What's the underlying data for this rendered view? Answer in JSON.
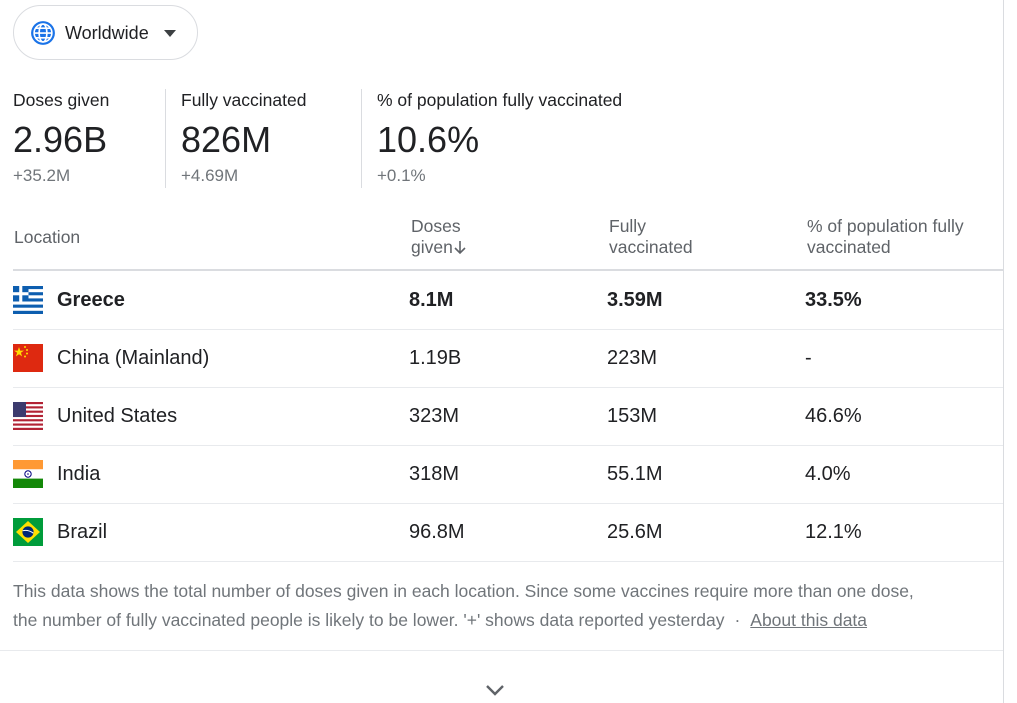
{
  "region": {
    "selected": "Worldwide",
    "icon": "globe-icon",
    "accent": "#1a73e8"
  },
  "stats": [
    {
      "label": "Doses given",
      "value": "2.96B",
      "delta": "+35.2M"
    },
    {
      "label": "Fully vaccinated",
      "value": "826M",
      "delta": "+4.69M"
    },
    {
      "label": "% of population fully vaccinated",
      "value": "10.6%",
      "delta": "+0.1%"
    }
  ],
  "table": {
    "headers": {
      "location": "Location",
      "doses_line1": "Doses",
      "doses_line2": "given",
      "fully_line1": "Fully",
      "fully_line2": "vaccinated",
      "pct_line1": "% of population fully",
      "pct_line2": "vaccinated",
      "sort_icon": "arrow-down-icon"
    },
    "rows": [
      {
        "flag": "greece-flag-icon",
        "location": "Greece",
        "doses": "8.1M",
        "fully": "3.59M",
        "pct": "33.5%"
      },
      {
        "flag": "china-flag-icon",
        "location": "China (Mainland)",
        "doses": "1.19B",
        "fully": "223M",
        "pct": "-"
      },
      {
        "flag": "united-states-flag-icon",
        "location": "United States",
        "doses": "323M",
        "fully": "153M",
        "pct": "46.6%"
      },
      {
        "flag": "india-flag-icon",
        "location": "India",
        "doses": "318M",
        "fully": "55.1M",
        "pct": "4.0%"
      },
      {
        "flag": "brazil-flag-icon",
        "location": "Brazil",
        "doses": "96.8M",
        "fully": "25.6M",
        "pct": "12.1%"
      }
    ]
  },
  "footer": {
    "note_line1": "This data shows the total number of doses given in each location. Since some vaccines require more than one dose,",
    "note_line2": "the number of fully vaccinated people is likely to be lower. '+' shows data reported yesterday",
    "separator": "·",
    "about_link": "About this data",
    "expand_icon": "chevron-down-icon"
  }
}
